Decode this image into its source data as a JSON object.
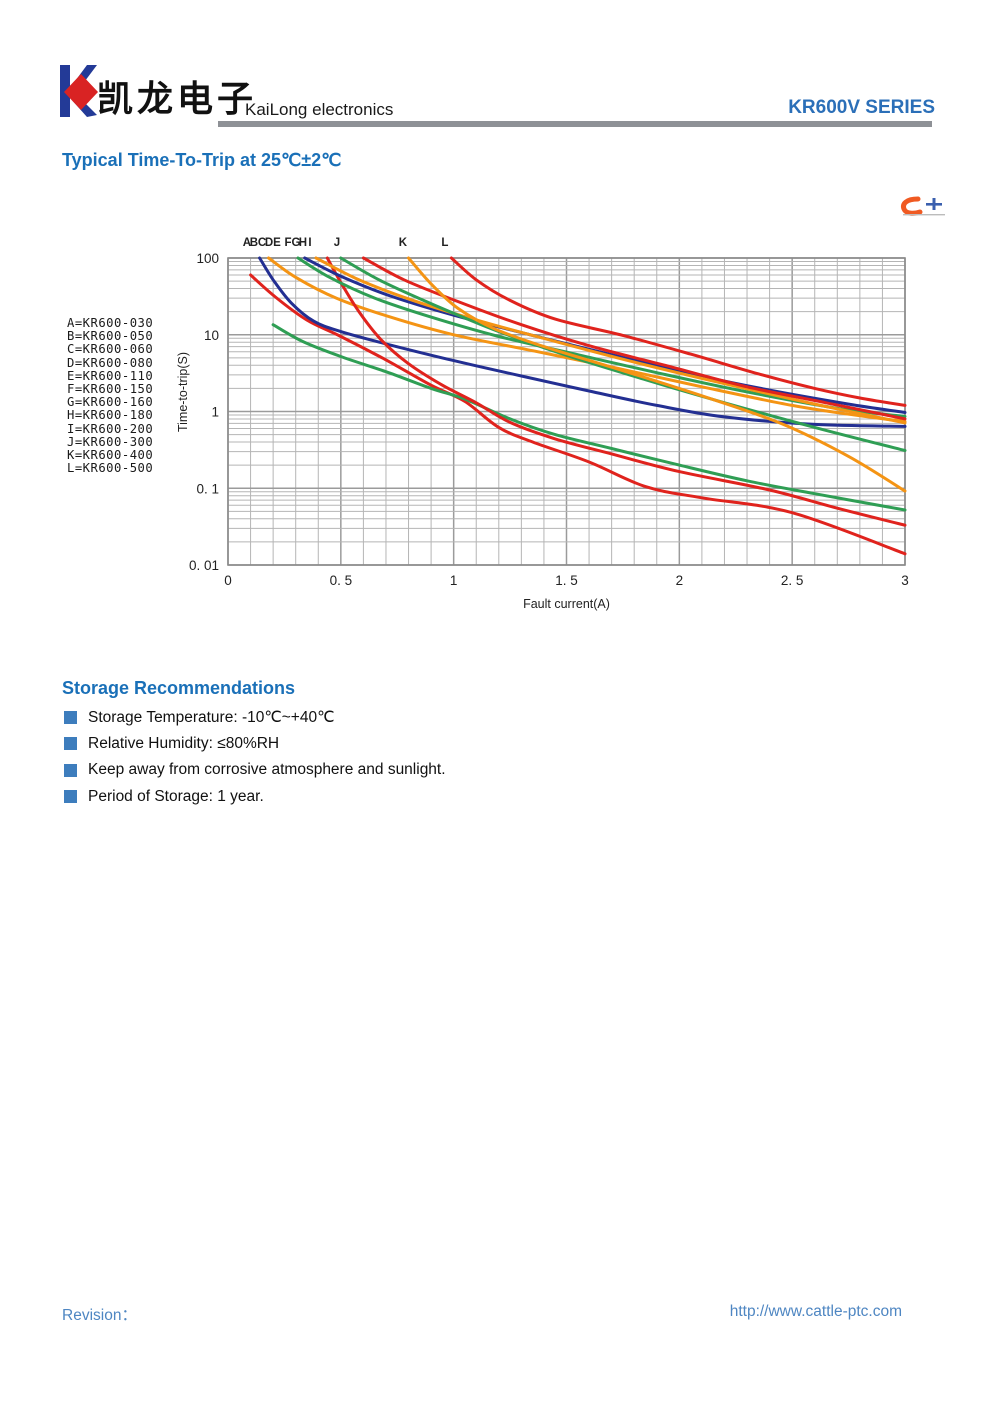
{
  "header": {
    "company_cn": "凯龙电子",
    "company_en": "KaiLong electronics",
    "series": "KR600V SERIES"
  },
  "title": "Typical Time-To-Trip at 25℃±2℃",
  "storage": {
    "heading": "Storage Recommendations",
    "items": [
      "Storage Temperature: -10℃~+40℃",
      "Relative Humidity: ≤80%RH",
      "Keep away from corrosive atmosphere and sunlight.",
      "Period of Storage: 1 year."
    ]
  },
  "footer": {
    "revision_label": "Revision：",
    "website": "http://www.cattle-ptc.com"
  },
  "colors": {
    "red": "#e0231d",
    "green": "#2f9e54",
    "blue": "#232f92",
    "orange": "#f49414",
    "grid_minor": "#b5b5b5",
    "grid_major": "#9b9b9b",
    "plot_border": "#8a8a8a",
    "accent_blue": "#1a70b8",
    "watermark_orange": "#f05a22",
    "watermark_blue": "#3a5fae"
  },
  "chart_data": {
    "type": "line",
    "xlabel": "Fault current(A)",
    "ylabel": "Time-to-trip(S)",
    "xlim": [
      0,
      3
    ],
    "ylim_log": [
      0.01,
      100
    ],
    "x_minor_step": 0.1,
    "grid": true,
    "x_ticks": [
      {
        "v": 0,
        "label": "0"
      },
      {
        "v": 0.5,
        "label": "0. 5"
      },
      {
        "v": 1,
        "label": "1"
      },
      {
        "v": 1.5,
        "label": "1. 5"
      },
      {
        "v": 2,
        "label": "2"
      },
      {
        "v": 2.5,
        "label": "2. 5"
      },
      {
        "v": 3,
        "label": "3"
      }
    ],
    "y_ticks": [
      {
        "v": 100,
        "label": "100"
      },
      {
        "v": 10,
        "label": "10"
      },
      {
        "v": 1,
        "label": "1"
      },
      {
        "v": 0.1,
        "label": "0. 1"
      },
      {
        "v": 0.01,
        "label": "0. 01"
      }
    ],
    "series": [
      {
        "name": "A",
        "model": "KR600-030",
        "label": "A=KR600-030",
        "color": "red",
        "marker_x": 0.084,
        "points": [
          [
            0.1,
            60
          ],
          [
            0.21,
            31
          ],
          [
            0.35,
            15.5
          ],
          [
            0.5,
            9.5
          ],
          [
            0.7,
            4.7
          ],
          [
            0.9,
            2.2
          ],
          [
            1.05,
            1.35
          ],
          [
            1.2,
            0.62
          ],
          [
            1.35,
            0.4
          ],
          [
            1.6,
            0.22
          ],
          [
            1.85,
            0.105
          ],
          [
            2.1,
            0.075
          ],
          [
            2.5,
            0.048
          ],
          [
            3.0,
            0.014
          ]
        ]
      },
      {
        "name": "B",
        "model": "KR600-050",
        "label": "B=KR600-050",
        "color": "green",
        "marker_x": 0.115,
        "points": [
          [
            0.2,
            13.5
          ],
          [
            0.33,
            8.2
          ],
          [
            0.5,
            5.2
          ],
          [
            0.7,
            3.3
          ],
          [
            0.9,
            2.0
          ],
          [
            1.05,
            1.45
          ],
          [
            1.25,
            0.8
          ],
          [
            1.45,
            0.5
          ],
          [
            1.7,
            0.33
          ],
          [
            2.0,
            0.2
          ],
          [
            2.3,
            0.125
          ],
          [
            2.6,
            0.085
          ],
          [
            3.0,
            0.052
          ]
        ]
      },
      {
        "name": "C",
        "model": "KR600-060",
        "label": "C=KR600-060",
        "color": "blue",
        "marker_x": 0.151,
        "points": [
          [
            0.14,
            100
          ],
          [
            0.2,
            52
          ],
          [
            0.28,
            26
          ],
          [
            0.38,
            15
          ],
          [
            0.5,
            11
          ],
          [
            0.7,
            7.6
          ],
          [
            1.0,
            4.6
          ],
          [
            1.3,
            2.9
          ],
          [
            1.6,
            1.85
          ],
          [
            1.9,
            1.2
          ],
          [
            2.2,
            0.85
          ],
          [
            2.6,
            0.68
          ],
          [
            3.0,
            0.64
          ]
        ]
      },
      {
        "name": "D",
        "model": "KR600-080",
        "label": "D=KR600-080",
        "color": "orange",
        "marker_x": 0.182,
        "points": [
          [
            0.18,
            100
          ],
          [
            0.3,
            56
          ],
          [
            0.48,
            30
          ],
          [
            0.72,
            17
          ],
          [
            1.0,
            10
          ],
          [
            1.35,
            6.2
          ],
          [
            1.7,
            3.8
          ],
          [
            2.1,
            2.1
          ],
          [
            2.5,
            1.2
          ],
          [
            2.8,
            0.88
          ],
          [
            3.0,
            0.74
          ]
        ]
      },
      {
        "name": "E",
        "model": "KR600-110",
        "label": "E=KR600-110",
        "color": "red",
        "marker_x": 0.217,
        "points": [
          [
            0.44,
            100
          ],
          [
            0.5,
            48
          ],
          [
            0.58,
            20
          ],
          [
            0.68,
            8.5
          ],
          [
            0.8,
            4.2
          ],
          [
            0.95,
            2.2
          ],
          [
            1.1,
            1.3
          ],
          [
            1.25,
            0.72
          ],
          [
            1.45,
            0.44
          ],
          [
            1.7,
            0.28
          ],
          [
            2.0,
            0.165
          ],
          [
            2.4,
            0.095
          ],
          [
            2.7,
            0.055
          ],
          [
            3.0,
            0.033
          ]
        ]
      },
      {
        "name": "F",
        "model": "KR600-150",
        "label": "F=KR600-150",
        "color": "green",
        "marker_x": 0.266,
        "points": [
          [
            0.31,
            100
          ],
          [
            0.45,
            56
          ],
          [
            0.65,
            30
          ],
          [
            0.9,
            17
          ],
          [
            1.2,
            9.5
          ],
          [
            1.55,
            5.5
          ],
          [
            1.9,
            3.2
          ],
          [
            2.3,
            1.8
          ],
          [
            2.7,
            1.1
          ],
          [
            3.0,
            0.86
          ]
        ]
      },
      {
        "name": "G",
        "model": "KR600-160",
        "label": "G=KR600-160",
        "color": "blue",
        "marker_x": 0.301,
        "points": [
          [
            0.34,
            100
          ],
          [
            0.5,
            58
          ],
          [
            0.72,
            32
          ],
          [
            1.0,
            18
          ],
          [
            1.35,
            9.8
          ],
          [
            1.7,
            5.5
          ],
          [
            2.05,
            3.1
          ],
          [
            2.4,
            1.9
          ],
          [
            2.75,
            1.25
          ],
          [
            3.0,
            0.97
          ]
        ]
      },
      {
        "name": "H",
        "model": "KR600-180",
        "label": "H=KR600-180",
        "color": "orange",
        "marker_x": 0.332,
        "points": [
          [
            0.39,
            100
          ],
          [
            0.58,
            52
          ],
          [
            0.82,
            28
          ],
          [
            1.12,
            15
          ],
          [
            1.45,
            8.2
          ],
          [
            1.8,
            4.4
          ],
          [
            2.2,
            2.3
          ],
          [
            2.6,
            1.25
          ],
          [
            3.0,
            0.71
          ]
        ]
      },
      {
        "name": "I",
        "model": "KR600-200",
        "label": "I=KR600-200",
        "color": "red",
        "marker_x": 0.363,
        "points": [
          [
            0.6,
            100
          ],
          [
            0.78,
            52
          ],
          [
            1.02,
            27
          ],
          [
            1.3,
            13.5
          ],
          [
            1.6,
            7.2
          ],
          [
            1.95,
            3.9
          ],
          [
            2.3,
            2.1
          ],
          [
            2.65,
            1.3
          ],
          [
            3.0,
            0.8
          ]
        ]
      },
      {
        "name": "J",
        "model": "KR600-300",
        "label": "J=KR600-300",
        "color": "green",
        "marker_x": 0.483,
        "points": [
          [
            0.5,
            100
          ],
          [
            0.68,
            50
          ],
          [
            0.92,
            24
          ],
          [
            1.2,
            11
          ],
          [
            1.5,
            5.4
          ],
          [
            1.85,
            2.6
          ],
          [
            2.2,
            1.3
          ],
          [
            2.6,
            0.62
          ],
          [
            3.0,
            0.31
          ]
        ]
      },
      {
        "name": "K",
        "model": "KR600-400",
        "label": "K=KR600-400",
        "color": "orange",
        "marker_x": 0.775,
        "points": [
          [
            0.8,
            100
          ],
          [
            0.9,
            46
          ],
          [
            1.02,
            22
          ],
          [
            1.18,
            12
          ],
          [
            1.4,
            7.0
          ],
          [
            1.75,
            3.4
          ],
          [
            2.1,
            1.6
          ],
          [
            2.45,
            0.7
          ],
          [
            2.75,
            0.26
          ],
          [
            3.0,
            0.092
          ]
        ]
      },
      {
        "name": "L",
        "model": "KR600-500",
        "label": "L=KR600-500",
        "color": "red",
        "marker_x": 0.961,
        "points": [
          [
            0.99,
            100
          ],
          [
            1.1,
            52
          ],
          [
            1.25,
            28
          ],
          [
            1.45,
            16
          ],
          [
            1.75,
            9.8
          ],
          [
            2.05,
            5.6
          ],
          [
            2.35,
            3.1
          ],
          [
            2.6,
            2.0
          ],
          [
            2.8,
            1.5
          ],
          [
            3.0,
            1.2
          ]
        ]
      }
    ]
  }
}
